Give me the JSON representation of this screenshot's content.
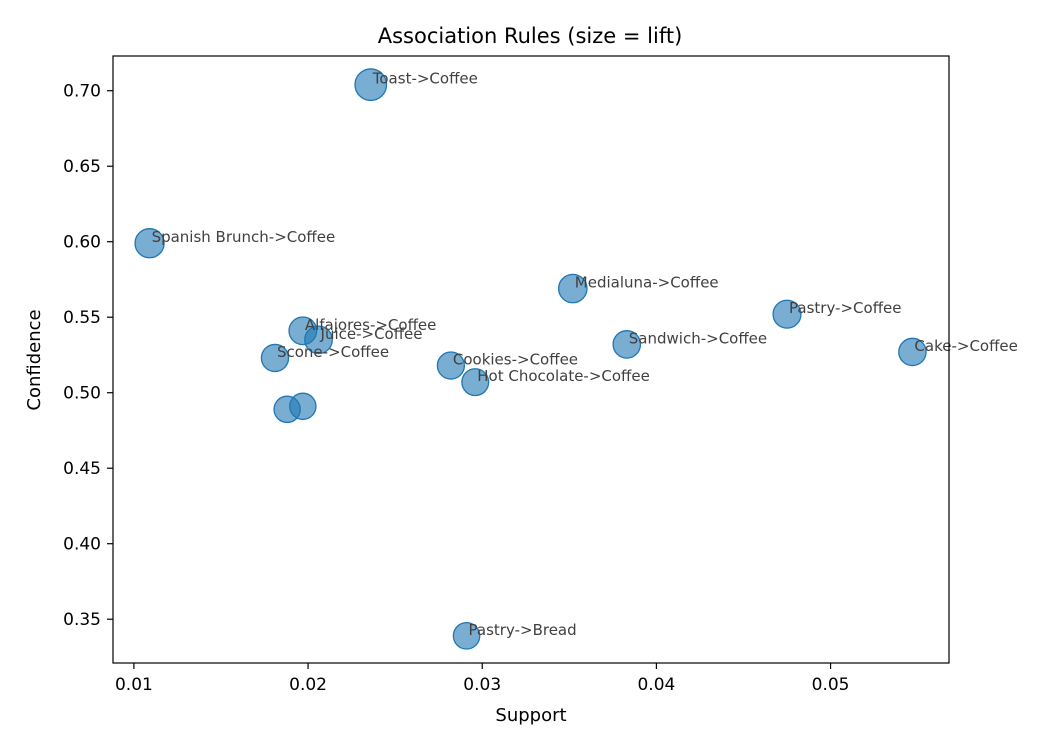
{
  "chart_data": {
    "type": "scatter",
    "title": "Association Rules (size = lift)",
    "xlabel": "Support",
    "ylabel": "Confidence",
    "xlim": [
      0.0088,
      0.0568
    ],
    "ylim": [
      0.321,
      0.723
    ],
    "x_ticks": [
      {
        "value": 0.01,
        "label": "0.01"
      },
      {
        "value": 0.02,
        "label": "0.02"
      },
      {
        "value": 0.03,
        "label": "0.03"
      },
      {
        "value": 0.04,
        "label": "0.04"
      },
      {
        "value": 0.05,
        "label": "0.05"
      }
    ],
    "y_ticks": [
      {
        "value": 0.35,
        "label": "0.35"
      },
      {
        "value": 0.4,
        "label": "0.40"
      },
      {
        "value": 0.45,
        "label": "0.45"
      },
      {
        "value": 0.5,
        "label": "0.50"
      },
      {
        "value": 0.55,
        "label": "0.55"
      },
      {
        "value": 0.6,
        "label": "0.60"
      },
      {
        "value": 0.65,
        "label": "0.65"
      },
      {
        "value": 0.7,
        "label": "0.70"
      }
    ],
    "grid": false,
    "marker_color": "#1f77b4",
    "marker_opacity": 0.6,
    "points": [
      {
        "label": "Toast->Coffee",
        "support": 0.0236,
        "confidence": 0.704,
        "lift": 1.47
      },
      {
        "label": "Spanish Brunch->Coffee",
        "support": 0.0109,
        "confidence": 0.599,
        "lift": 1.25
      },
      {
        "label": "Medialuna->Coffee",
        "support": 0.0352,
        "confidence": 0.569,
        "lift": 1.19
      },
      {
        "label": "Pastry->Coffee",
        "support": 0.0475,
        "confidence": 0.552,
        "lift": 1.15
      },
      {
        "label": "Alfajores->Coffee",
        "support": 0.0197,
        "confidence": 0.541,
        "lift": 1.13
      },
      {
        "label": "Juice->Coffee",
        "support": 0.0206,
        "confidence": 0.535,
        "lift": 1.12
      },
      {
        "label": "Sandwich->Coffee",
        "support": 0.0383,
        "confidence": 0.532,
        "lift": 1.11
      },
      {
        "label": "Cake->Coffee",
        "support": 0.0547,
        "confidence": 0.527,
        "lift": 1.1
      },
      {
        "label": "Scone->Coffee",
        "support": 0.0181,
        "confidence": 0.523,
        "lift": 1.09
      },
      {
        "label": "Cookies->Coffee",
        "support": 0.0282,
        "confidence": 0.518,
        "lift": 1.08
      },
      {
        "label": "Hot Chocolate->Coffee",
        "support": 0.0296,
        "confidence": 0.507,
        "lift": 1.06
      },
      {
        "label": "",
        "support": 0.0197,
        "confidence": 0.491,
        "lift": 1.02
      },
      {
        "label": "",
        "support": 0.0188,
        "confidence": 0.489,
        "lift": 1.02
      },
      {
        "label": "Pastry->Bread",
        "support": 0.0291,
        "confidence": 0.339,
        "lift": 1.03
      }
    ]
  }
}
